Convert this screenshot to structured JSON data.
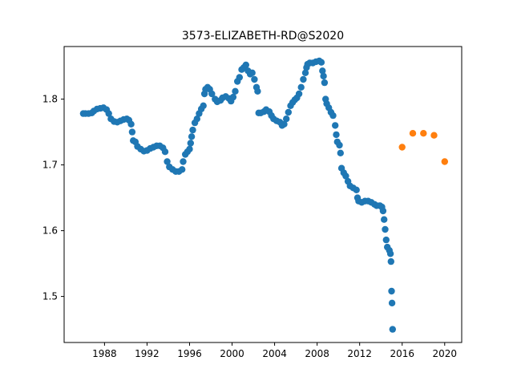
{
  "chart_data": {
    "type": "scatter",
    "title": "3573-ELIZABETH-RD@S2020",
    "xlabel": "",
    "ylabel": "",
    "xlim": [
      1984.2,
      2021.6
    ],
    "ylim": [
      1.43,
      1.88
    ],
    "x_ticks": [
      1988,
      1992,
      1996,
      2000,
      2004,
      2008,
      2012,
      2016,
      2020
    ],
    "y_ticks": [
      1.5,
      1.6,
      1.7,
      1.8
    ],
    "grid": false,
    "colors": {
      "series_1": "#1f77b4",
      "series_2": "#ff7f0e"
    },
    "series": [
      {
        "points": [
          [
            1986.0,
            1.778
          ],
          [
            1986.2,
            1.778
          ],
          [
            1986.5,
            1.778
          ],
          [
            1986.8,
            1.779
          ],
          [
            1987.0,
            1.782
          ],
          [
            1987.3,
            1.785
          ],
          [
            1987.6,
            1.786
          ],
          [
            1987.9,
            1.787
          ],
          [
            1988.2,
            1.784
          ],
          [
            1988.4,
            1.778
          ],
          [
            1988.6,
            1.77
          ],
          [
            1988.9,
            1.766
          ],
          [
            1989.2,
            1.765
          ],
          [
            1989.5,
            1.767
          ],
          [
            1989.8,
            1.769
          ],
          [
            1990.1,
            1.77
          ],
          [
            1990.3,
            1.768
          ],
          [
            1990.5,
            1.762
          ],
          [
            1990.6,
            1.75
          ],
          [
            1990.7,
            1.737
          ],
          [
            1990.9,
            1.735
          ],
          [
            1991.1,
            1.728
          ],
          [
            1991.4,
            1.724
          ],
          [
            1991.7,
            1.721
          ],
          [
            1992.0,
            1.722
          ],
          [
            1992.3,
            1.725
          ],
          [
            1992.6,
            1.727
          ],
          [
            1992.9,
            1.729
          ],
          [
            1993.2,
            1.729
          ],
          [
            1993.5,
            1.726
          ],
          [
            1993.7,
            1.72
          ],
          [
            1993.9,
            1.705
          ],
          [
            1994.1,
            1.697
          ],
          [
            1994.4,
            1.693
          ],
          [
            1994.7,
            1.69
          ],
          [
            1995.0,
            1.69
          ],
          [
            1995.3,
            1.693
          ],
          [
            1995.4,
            1.705
          ],
          [
            1995.6,
            1.716
          ],
          [
            1995.8,
            1.72
          ],
          [
            1996.0,
            1.724
          ],
          [
            1996.1,
            1.733
          ],
          [
            1996.2,
            1.743
          ],
          [
            1996.3,
            1.753
          ],
          [
            1996.5,
            1.764
          ],
          [
            1996.7,
            1.77
          ],
          [
            1996.9,
            1.778
          ],
          [
            1997.1,
            1.785
          ],
          [
            1997.3,
            1.79
          ],
          [
            1997.4,
            1.808
          ],
          [
            1997.5,
            1.815
          ],
          [
            1997.7,
            1.818
          ],
          [
            1997.9,
            1.815
          ],
          [
            1998.1,
            1.808
          ],
          [
            1998.4,
            1.8
          ],
          [
            1998.6,
            1.796
          ],
          [
            1998.9,
            1.798
          ],
          [
            1999.1,
            1.802
          ],
          [
            1999.4,
            1.804
          ],
          [
            1999.7,
            1.801
          ],
          [
            1999.9,
            1.797
          ],
          [
            2000.1,
            1.803
          ],
          [
            2000.3,
            1.812
          ],
          [
            2000.5,
            1.827
          ],
          [
            2000.7,
            1.833
          ],
          [
            2000.9,
            1.845
          ],
          [
            2001.1,
            1.848
          ],
          [
            2001.3,
            1.852
          ],
          [
            2001.5,
            1.843
          ],
          [
            2001.7,
            1.838
          ],
          [
            2001.9,
            1.84
          ],
          [
            2002.1,
            1.83
          ],
          [
            2002.3,
            1.818
          ],
          [
            2002.4,
            1.812
          ],
          [
            2002.5,
            1.779
          ],
          [
            2002.7,
            1.779
          ],
          [
            2003.0,
            1.781
          ],
          [
            2003.2,
            1.784
          ],
          [
            2003.5,
            1.781
          ],
          [
            2003.7,
            1.775
          ],
          [
            2003.9,
            1.77
          ],
          [
            2004.2,
            1.767
          ],
          [
            2004.5,
            1.765
          ],
          [
            2004.7,
            1.76
          ],
          [
            2004.9,
            1.762
          ],
          [
            2005.1,
            1.77
          ],
          [
            2005.3,
            1.78
          ],
          [
            2005.5,
            1.79
          ],
          [
            2005.7,
            1.795
          ],
          [
            2005.9,
            1.799
          ],
          [
            2006.1,
            1.802
          ],
          [
            2006.3,
            1.808
          ],
          [
            2006.5,
            1.818
          ],
          [
            2006.7,
            1.83
          ],
          [
            2006.9,
            1.84
          ],
          [
            2007.0,
            1.848
          ],
          [
            2007.1,
            1.853
          ],
          [
            2007.3,
            1.855
          ],
          [
            2007.6,
            1.855
          ],
          [
            2007.9,
            1.857
          ],
          [
            2008.2,
            1.858
          ],
          [
            2008.4,
            1.856
          ],
          [
            2008.5,
            1.843
          ],
          [
            2008.6,
            1.835
          ],
          [
            2008.7,
            1.825
          ],
          [
            2008.8,
            1.8
          ],
          [
            2008.9,
            1.793
          ],
          [
            2009.1,
            1.787
          ],
          [
            2009.3,
            1.78
          ],
          [
            2009.5,
            1.775
          ],
          [
            2009.7,
            1.76
          ],
          [
            2009.8,
            1.746
          ],
          [
            2009.9,
            1.735
          ],
          [
            2010.1,
            1.73
          ],
          [
            2010.2,
            1.718
          ],
          [
            2010.3,
            1.695
          ],
          [
            2010.5,
            1.688
          ],
          [
            2010.7,
            1.683
          ],
          [
            2010.9,
            1.675
          ],
          [
            2011.1,
            1.668
          ],
          [
            2011.4,
            1.665
          ],
          [
            2011.7,
            1.662
          ],
          [
            2011.8,
            1.65
          ],
          [
            2011.9,
            1.645
          ],
          [
            2012.2,
            1.643
          ],
          [
            2012.5,
            1.645
          ],
          [
            2012.8,
            1.645
          ],
          [
            2013.1,
            1.643
          ],
          [
            2013.4,
            1.64
          ],
          [
            2013.6,
            1.638
          ],
          [
            2013.9,
            1.638
          ],
          [
            2014.1,
            1.636
          ],
          [
            2014.2,
            1.63
          ],
          [
            2014.3,
            1.617
          ],
          [
            2014.4,
            1.602
          ],
          [
            2014.5,
            1.586
          ],
          [
            2014.6,
            1.575
          ],
          [
            2014.8,
            1.57
          ],
          [
            2014.9,
            1.565
          ],
          [
            2014.95,
            1.553
          ],
          [
            2015.0,
            1.508
          ],
          [
            2015.05,
            1.49
          ],
          [
            2015.1,
            1.45
          ]
        ]
      },
      {
        "points": [
          [
            2016.0,
            1.727
          ],
          [
            2017.0,
            1.748
          ],
          [
            2018.0,
            1.748
          ],
          [
            2019.0,
            1.745
          ],
          [
            2020.0,
            1.705
          ]
        ]
      }
    ]
  }
}
